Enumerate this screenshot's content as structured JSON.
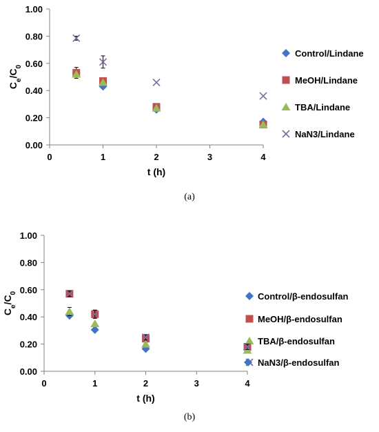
{
  "chart_data": [
    {
      "type": "scatter",
      "caption": "(a)",
      "xlabel": "t (h)",
      "ylabel": {
        "base": "C",
        "sub1": "e",
        "sep": "/C",
        "sub2": "0"
      },
      "xlim": [
        0,
        4
      ],
      "ylim": [
        0,
        1.0
      ],
      "xticks": [
        "0",
        "1",
        "2",
        "3",
        "4"
      ],
      "yticks": [
        "0.00",
        "0.20",
        "0.40",
        "0.60",
        "0.80",
        "1.00"
      ],
      "grid": false,
      "legend_position": "right",
      "series": [
        {
          "name": "Control/Lindane",
          "marker": "diamond",
          "color": "#4472C4",
          "x": [
            0.5,
            1,
            2,
            4
          ],
          "y": [
            0.53,
            0.43,
            0.26,
            0.17
          ],
          "err": [
            0,
            0,
            0,
            0
          ]
        },
        {
          "name": "MeOH/Lindane",
          "marker": "square",
          "color": "#C0504D",
          "x": [
            0.5,
            1,
            2,
            4
          ],
          "y": [
            0.53,
            0.47,
            0.28,
            0.15
          ],
          "err": [
            0.04,
            0,
            0,
            0
          ]
        },
        {
          "name": "TBA/Lindane",
          "marker": "triangle",
          "color": "#9BBB59",
          "x": [
            0.5,
            1,
            2,
            4
          ],
          "y": [
            0.52,
            0.46,
            0.27,
            0.15
          ],
          "err": [
            0,
            0,
            0,
            0
          ]
        },
        {
          "name": "NaN3/Lindane",
          "marker": "x",
          "color": "#7F6A9F",
          "x": [
            0.5,
            1,
            2,
            4
          ],
          "y": [
            0.785,
            0.61,
            0.46,
            0.36
          ],
          "err": [
            0.015,
            0.045,
            0,
            0
          ]
        }
      ]
    },
    {
      "type": "scatter",
      "caption": "(b)",
      "xlabel": "t (h)",
      "ylabel": {
        "base": "C",
        "sub1": "e",
        "sep": "/C",
        "sub2": "0"
      },
      "xlim": [
        0,
        4
      ],
      "ylim": [
        0,
        1.0
      ],
      "xticks": [
        "0",
        "1",
        "2",
        "3",
        "4"
      ],
      "yticks": [
        "0.00",
        "0.20",
        "0.40",
        "0.60",
        "0.80",
        "1.00"
      ],
      "grid": false,
      "legend_position": "right",
      "series": [
        {
          "name": "Control/β-endosulfan",
          "marker": "diamond",
          "color": "#4472C4",
          "x": [
            0.5,
            1,
            2,
            4
          ],
          "y": [
            0.41,
            0.305,
            0.165,
            0.16
          ],
          "err": [
            0,
            0,
            0,
            0
          ]
        },
        {
          "name": "MeOH/β-endosulfan",
          "marker": "square",
          "color": "#C0504D",
          "x": [
            0.5,
            1,
            2,
            4
          ],
          "y": [
            0.57,
            0.42,
            0.24,
            0.18
          ],
          "err": [
            0.02,
            0.03,
            0.02,
            0.02
          ]
        },
        {
          "name": "TBA/β-endosulfan",
          "marker": "triangle",
          "color": "#9BBB59",
          "x": [
            0.5,
            1,
            2,
            4
          ],
          "y": [
            0.44,
            0.35,
            0.2,
            0.155
          ],
          "err": [
            0.03,
            0,
            0,
            0
          ]
        },
        {
          "name": "NaN3/β-endosulfan",
          "marker": "x",
          "color": "#7F6A9F",
          "x": [
            0.5,
            1,
            2,
            4
          ],
          "y": [
            0.57,
            0.42,
            0.25,
            0.18
          ],
          "err": [
            0.02,
            0.03,
            0.02,
            0.02
          ]
        }
      ]
    }
  ]
}
